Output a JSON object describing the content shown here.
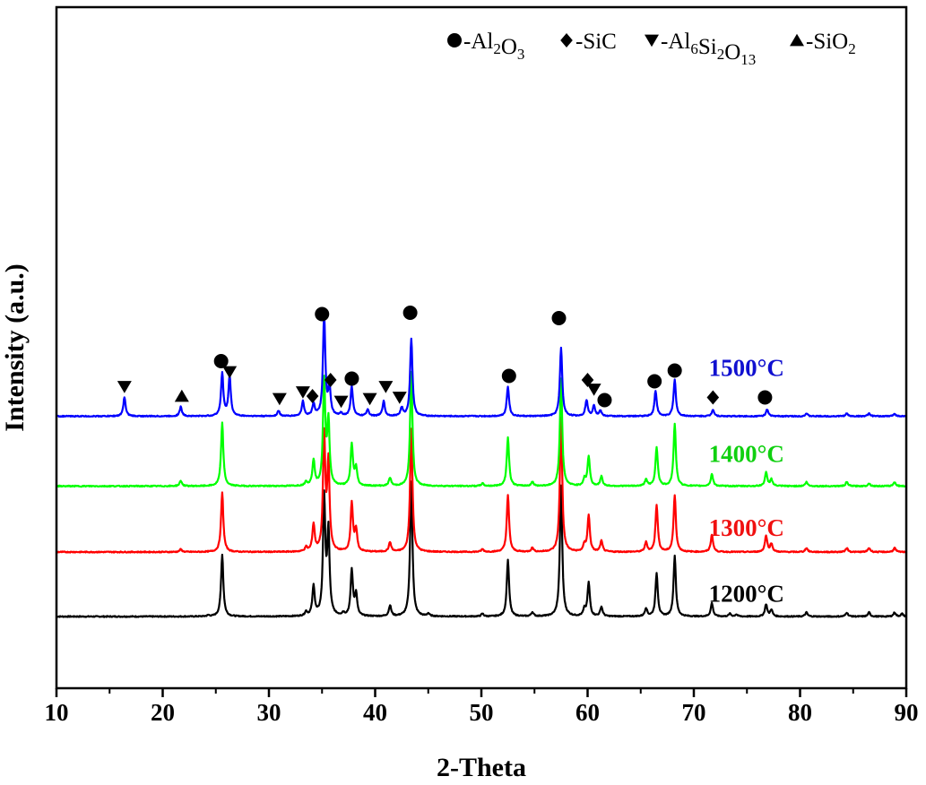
{
  "chart_data": {
    "type": "line",
    "xlabel": "2-Theta",
    "ylabel": "Intensity (a.u.)",
    "xlim": [
      10,
      90
    ],
    "xticks": [
      10,
      20,
      30,
      40,
      50,
      60,
      70,
      80,
      90
    ],
    "yticks_shown": false,
    "grid": false,
    "legend_position": "top-right",
    "legend": [
      {
        "marker": "circle",
        "text": "-Al2O3",
        "parts": [
          [
            "-Al",
            ""
          ],
          [
            "2",
            "sub"
          ],
          [
            "O",
            ""
          ],
          [
            "3",
            "sub"
          ]
        ]
      },
      {
        "marker": "diamond",
        "text": "-SiC",
        "parts": [
          [
            "-SiC",
            ""
          ]
        ]
      },
      {
        "marker": "triangle-down",
        "text": "-Al6Si2O13",
        "parts": [
          [
            "-Al",
            ""
          ],
          [
            "6",
            "sub"
          ],
          [
            "Si",
            ""
          ],
          [
            "2",
            "sub"
          ],
          [
            "O",
            ""
          ],
          [
            "13",
            "sub"
          ]
        ]
      },
      {
        "marker": "triangle-up",
        "text": "-SiO2",
        "parts": [
          [
            "-SiO",
            ""
          ],
          [
            "2",
            "sub"
          ]
        ]
      }
    ],
    "series": [
      {
        "name": "1200°C",
        "color": "#000000",
        "offset": 0.0,
        "peaks": [
          [
            24.3,
            0.008
          ],
          [
            25.6,
            0.46
          ],
          [
            33.5,
            0.03
          ],
          [
            34.2,
            0.22
          ],
          [
            35.2,
            0.87
          ],
          [
            35.6,
            0.62
          ],
          [
            37.0,
            0.02
          ],
          [
            37.8,
            0.34
          ],
          [
            38.2,
            0.16
          ],
          [
            41.4,
            0.08
          ],
          [
            43.4,
            1.0
          ],
          [
            45.0,
            0.02
          ],
          [
            50.1,
            0.02
          ],
          [
            52.5,
            0.42
          ],
          [
            54.8,
            0.03
          ],
          [
            57.5,
            0.97
          ],
          [
            59.7,
            0.05
          ],
          [
            60.1,
            0.25
          ],
          [
            61.3,
            0.07
          ],
          [
            65.5,
            0.06
          ],
          [
            66.5,
            0.32
          ],
          [
            68.2,
            0.45
          ],
          [
            71.7,
            0.1
          ],
          [
            73.4,
            0.02
          ],
          [
            74.0,
            0.015
          ],
          [
            76.8,
            0.09
          ],
          [
            77.3,
            0.05
          ],
          [
            80.6,
            0.03
          ],
          [
            84.4,
            0.03
          ],
          [
            86.5,
            0.03
          ],
          [
            88.9,
            0.03
          ],
          [
            89.6,
            0.02
          ]
        ]
      },
      {
        "name": "1300°C",
        "color": "#ff0000",
        "offset": 0.48,
        "peaks": [
          [
            21.7,
            0.02
          ],
          [
            25.6,
            0.44
          ],
          [
            33.5,
            0.03
          ],
          [
            34.2,
            0.2
          ],
          [
            35.2,
            0.85
          ],
          [
            35.6,
            0.65
          ],
          [
            37.8,
            0.36
          ],
          [
            38.2,
            0.16
          ],
          [
            41.4,
            0.07
          ],
          [
            43.4,
            0.92
          ],
          [
            50.1,
            0.02
          ],
          [
            52.5,
            0.42
          ],
          [
            54.8,
            0.03
          ],
          [
            57.5,
            1.0
          ],
          [
            59.7,
            0.05
          ],
          [
            60.1,
            0.27
          ],
          [
            61.3,
            0.08
          ],
          [
            65.5,
            0.07
          ],
          [
            66.5,
            0.35
          ],
          [
            68.2,
            0.42
          ],
          [
            71.7,
            0.13
          ],
          [
            76.8,
            0.12
          ],
          [
            77.3,
            0.06
          ],
          [
            80.6,
            0.03
          ],
          [
            84.4,
            0.03
          ],
          [
            86.5,
            0.03
          ],
          [
            88.9,
            0.03
          ]
        ]
      },
      {
        "name": "1400°C",
        "color": "#00ff00",
        "offset": 0.97,
        "peaks": [
          [
            21.7,
            0.04
          ],
          [
            25.6,
            0.47
          ],
          [
            33.5,
            0.03
          ],
          [
            34.2,
            0.19
          ],
          [
            35.2,
            0.77
          ],
          [
            35.6,
            0.47
          ],
          [
            37.8,
            0.31
          ],
          [
            38.2,
            0.13
          ],
          [
            41.4,
            0.06
          ],
          [
            43.4,
            0.85
          ],
          [
            50.1,
            0.02
          ],
          [
            52.5,
            0.36
          ],
          [
            54.8,
            0.03
          ],
          [
            57.5,
            0.8
          ],
          [
            59.7,
            0.05
          ],
          [
            60.1,
            0.22
          ],
          [
            61.3,
            0.07
          ],
          [
            65.5,
            0.05
          ],
          [
            66.5,
            0.29
          ],
          [
            68.2,
            0.46
          ],
          [
            71.7,
            0.09
          ],
          [
            76.8,
            0.1
          ],
          [
            77.3,
            0.05
          ],
          [
            80.6,
            0.03
          ],
          [
            84.4,
            0.03
          ],
          [
            86.5,
            0.02
          ],
          [
            88.9,
            0.03
          ]
        ]
      },
      {
        "name": "1500°C",
        "color": "#0000ff",
        "offset": 1.49,
        "peaks": [
          [
            16.4,
            0.14
          ],
          [
            21.7,
            0.07
          ],
          [
            25.6,
            0.32
          ],
          [
            26.3,
            0.3
          ],
          [
            30.9,
            0.04
          ],
          [
            33.2,
            0.11
          ],
          [
            34.2,
            0.09
          ],
          [
            35.2,
            0.75
          ],
          [
            35.7,
            0.21
          ],
          [
            36.8,
            0.02
          ],
          [
            37.8,
            0.22
          ],
          [
            39.3,
            0.05
          ],
          [
            40.8,
            0.11
          ],
          [
            42.5,
            0.06
          ],
          [
            43.4,
            0.58
          ],
          [
            52.5,
            0.22
          ],
          [
            57.5,
            0.51
          ],
          [
            59.9,
            0.12
          ],
          [
            60.6,
            0.08
          ],
          [
            61.2,
            0.04
          ],
          [
            66.4,
            0.19
          ],
          [
            68.2,
            0.27
          ],
          [
            71.8,
            0.05
          ],
          [
            76.9,
            0.05
          ],
          [
            80.6,
            0.02
          ],
          [
            84.4,
            0.02
          ],
          [
            86.5,
            0.02
          ],
          [
            88.9,
            0.02
          ]
        ]
      }
    ],
    "markers": [
      {
        "type": "triangle-down",
        "x": 16.4,
        "y": 1.71
      },
      {
        "type": "triangle-up",
        "x": 21.8,
        "y": 1.64
      },
      {
        "type": "circle",
        "x": 25.5,
        "y": 1.9
      },
      {
        "type": "triangle-down",
        "x": 26.3,
        "y": 1.82
      },
      {
        "type": "triangle-down",
        "x": 31.0,
        "y": 1.62
      },
      {
        "type": "triangle-down",
        "x": 33.2,
        "y": 1.67
      },
      {
        "type": "diamond",
        "x": 34.1,
        "y": 1.64
      },
      {
        "type": "circle",
        "x": 35.0,
        "y": 2.25
      },
      {
        "type": "diamond",
        "x": 35.8,
        "y": 1.76
      },
      {
        "type": "triangle-down",
        "x": 36.8,
        "y": 1.6
      },
      {
        "type": "circle",
        "x": 37.8,
        "y": 1.77
      },
      {
        "type": "triangle-down",
        "x": 39.5,
        "y": 1.62
      },
      {
        "type": "triangle-down",
        "x": 41.0,
        "y": 1.71
      },
      {
        "type": "triangle-down",
        "x": 42.3,
        "y": 1.63
      },
      {
        "type": "circle",
        "x": 43.3,
        "y": 2.26
      },
      {
        "type": "circle",
        "x": 52.6,
        "y": 1.79
      },
      {
        "type": "circle",
        "x": 57.3,
        "y": 2.22
      },
      {
        "type": "diamond",
        "x": 60.0,
        "y": 1.76
      },
      {
        "type": "triangle-down",
        "x": 60.6,
        "y": 1.69
      },
      {
        "type": "circle",
        "x": 61.6,
        "y": 1.61
      },
      {
        "type": "circle",
        "x": 66.3,
        "y": 1.75
      },
      {
        "type": "circle",
        "x": 68.2,
        "y": 1.83
      },
      {
        "type": "diamond",
        "x": 71.8,
        "y": 1.63
      },
      {
        "type": "circle",
        "x": 76.7,
        "y": 1.63
      }
    ],
    "labels": [
      {
        "text": "1500°C",
        "color": "#1010d0",
        "x": 71.4,
        "y": 1.79
      },
      {
        "text": "1400°C",
        "color": "#10d010",
        "x": 71.4,
        "y": 1.15
      },
      {
        "text": "1300°C",
        "color": "#f01010",
        "x": 71.4,
        "y": 0.6
      },
      {
        "text": "1200°C",
        "color": "#000000",
        "x": 71.4,
        "y": 0.11
      }
    ]
  }
}
